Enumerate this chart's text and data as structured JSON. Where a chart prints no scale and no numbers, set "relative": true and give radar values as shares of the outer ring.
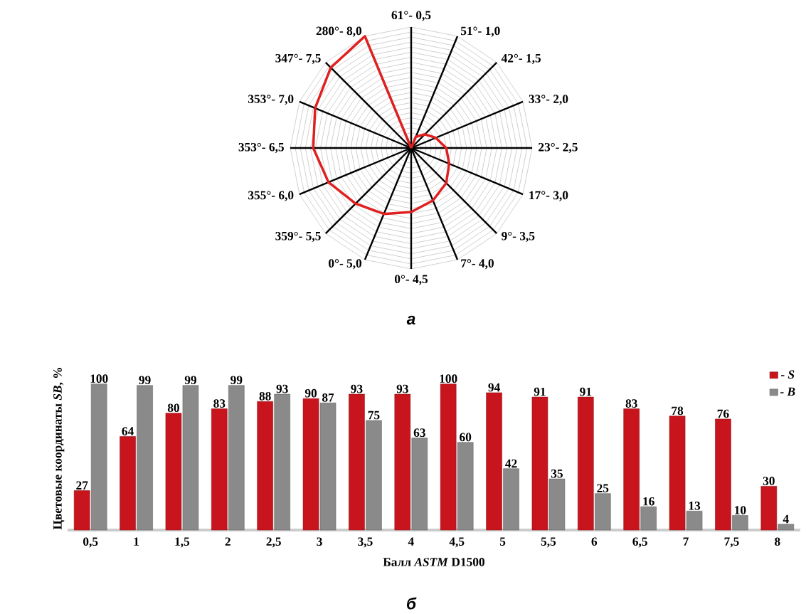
{
  "chart_data": [
    {
      "type": "radar",
      "title": "а",
      "relative": true,
      "grid": true,
      "categories": [
        "61°- 0,5",
        "51°- 1,0",
        "42°- 1,5",
        "33°- 2,0",
        "23°- 2,5",
        "17°- 3,0",
        "9°- 3,5",
        "7°- 4,0",
        "0°- 4,5",
        "0°- 5,0",
        "359°- 5,5",
        "355°- 6,0",
        "353°- 6,5",
        "353°- 7,0",
        "347°- 7,5",
        "280°- 8,0"
      ],
      "series": [
        {
          "color": "#e02020",
          "values": [
            0,
            0.1,
            0.16,
            0.22,
            0.29,
            0.34,
            0.41,
            0.47,
            0.53,
            0.59,
            0.65,
            0.74,
            0.81,
            0.86,
            0.94,
            1.0
          ]
        }
      ]
    },
    {
      "type": "bar",
      "title": "б",
      "xlabel": "Балл *ASTM* D1500",
      "ylabel": "Цветовые координаты *SB*, %",
      "categories": [
        "0,5",
        "1",
        "1,5",
        "2",
        "2,5",
        "3",
        "3,5",
        "4",
        "4,5",
        "5",
        "5,5",
        "6",
        "6,5",
        "7",
        "7,5",
        "8"
      ],
      "series": [
        {
          "name": "- *S*",
          "color": "#c8141c",
          "values": [
            27,
            64,
            80,
            83,
            88,
            90,
            93,
            93,
            100,
            94,
            91,
            91,
            83,
            78,
            76,
            30
          ]
        },
        {
          "name": "- *B*",
          "color": "#8a8a8a",
          "values": [
            100,
            99,
            99,
            99,
            93,
            87,
            75,
            63,
            60,
            42,
            35,
            25,
            16,
            13,
            10,
            4
          ]
        }
      ],
      "data_labels": true,
      "legend": "top right",
      "tick_labels": "x"
    }
  ]
}
